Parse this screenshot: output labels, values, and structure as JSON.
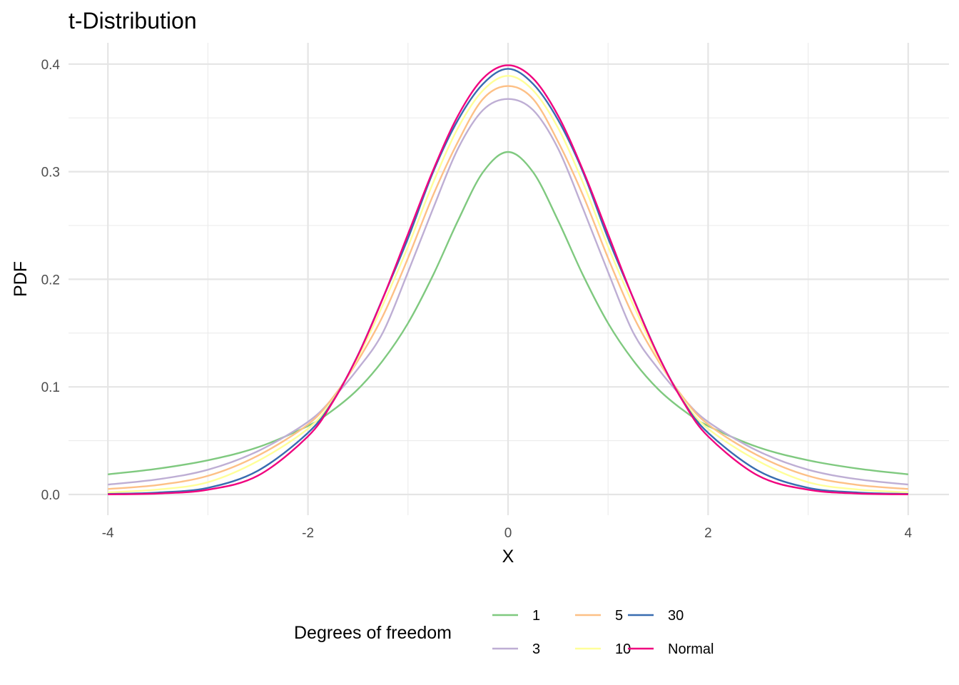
{
  "chart_data": {
    "type": "line",
    "title": "t-Distribution",
    "xlabel": "X",
    "ylabel": "PDF",
    "xlim": [
      -4,
      4
    ],
    "ylim": [
      0,
      0.4
    ],
    "x_ticks": [
      -4,
      -2,
      0,
      2,
      4
    ],
    "x_tick_labels": [
      "-4",
      "-2",
      "0",
      "2",
      "4"
    ],
    "y_ticks": [
      0,
      0.1,
      0.2,
      0.3,
      0.4
    ],
    "y_tick_labels": [
      "0.0",
      "0.1",
      "0.2",
      "0.3",
      "0.4"
    ],
    "grid": true,
    "legend": {
      "title": "Degrees of freedom",
      "position": "bottom"
    },
    "x": [
      -4,
      -3.5,
      -3,
      -2.5,
      -2,
      -1.75,
      -1.5,
      -1.25,
      -1,
      -0.75,
      -0.5,
      -0.25,
      0,
      0.25,
      0.5,
      0.75,
      1,
      1.25,
      1.5,
      1.75,
      2,
      2.5,
      3,
      3.5,
      4
    ],
    "series": [
      {
        "name": "1",
        "color": "#7fc97f",
        "values": [
          0.0187,
          0.024,
          0.0318,
          0.0439,
          0.0637,
          0.0784,
          0.0979,
          0.1247,
          0.1592,
          0.2037,
          0.2546,
          0.2996,
          0.3183,
          0.2996,
          0.2546,
          0.2037,
          0.1592,
          0.1247,
          0.0979,
          0.0784,
          0.0637,
          0.0439,
          0.0318,
          0.024,
          0.0187
        ]
      },
      {
        "name": "3",
        "color": "#beaed4",
        "values": [
          0.0092,
          0.0141,
          0.023,
          0.0403,
          0.0675,
          0.0896,
          0.1169,
          0.1507,
          0.2067,
          0.2656,
          0.3215,
          0.3573,
          0.3676,
          0.3573,
          0.3215,
          0.2656,
          0.2067,
          0.1507,
          0.1169,
          0.0896,
          0.0675,
          0.0403,
          0.023,
          0.0141,
          0.0092
        ]
      },
      {
        "name": "5",
        "color": "#fdc086",
        "values": [
          0.0051,
          0.0088,
          0.0173,
          0.0361,
          0.0651,
          0.0903,
          0.1245,
          0.1661,
          0.2197,
          0.2779,
          0.3279,
          0.3676,
          0.3796,
          0.3676,
          0.3279,
          0.2779,
          0.2197,
          0.1661,
          0.1245,
          0.0903,
          0.0651,
          0.0361,
          0.0173,
          0.0088,
          0.0051
        ]
      },
      {
        "name": "10",
        "color": "#ffff99",
        "values": [
          0.002,
          0.0046,
          0.0114,
          0.0311,
          0.0611,
          0.0879,
          0.1274,
          0.1765,
          0.2304,
          0.2895,
          0.3407,
          0.3756,
          0.3891,
          0.3756,
          0.3407,
          0.2895,
          0.2304,
          0.1765,
          0.1274,
          0.0879,
          0.0611,
          0.0311,
          0.0114,
          0.0046,
          0.002
        ]
      },
      {
        "name": "30",
        "color": "#386cb0",
        "values": [
          0.0005,
          0.0018,
          0.0062,
          0.0221,
          0.0573,
          0.0868,
          0.1296,
          0.1828,
          0.238,
          0.2995,
          0.3481,
          0.3816,
          0.3956,
          0.3816,
          0.3481,
          0.2995,
          0.238,
          0.1828,
          0.1296,
          0.0868,
          0.0573,
          0.0221,
          0.0062,
          0.0018,
          0.0005
        ]
      },
      {
        "name": "Normal",
        "color": "#f0027f",
        "values": [
          0.0001,
          0.0009,
          0.0044,
          0.0175,
          0.054,
          0.0863,
          0.1295,
          0.1826,
          0.242,
          0.3011,
          0.3521,
          0.3867,
          0.3989,
          0.3867,
          0.3521,
          0.3011,
          0.242,
          0.1826,
          0.1295,
          0.0863,
          0.054,
          0.0175,
          0.0044,
          0.0009,
          0.0001
        ]
      }
    ]
  }
}
